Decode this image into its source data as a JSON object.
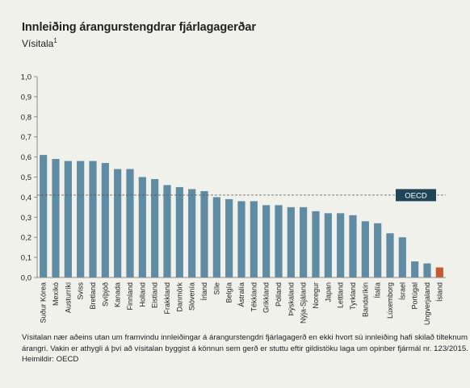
{
  "header": {
    "title": "Innleiðing árangurstengdrar fjárlagagerðar",
    "subtitle": "Vísitala",
    "subtitle_sup": "1"
  },
  "footnote": {
    "line1": "Vísitalan nær aðeins utan um framvindu innleiðingar á árangurstengdri fjárlagagerð en ekki hvort sú innleiðing hafi skilað tilteknum",
    "line2": "árangri. Vakin er athygli á því að vísitalan byggist á könnun sem gerð er stuttu eftir gildistöku laga um opinber fjármál nr. 123/2015.",
    "line3": "Heimildir: OECD"
  },
  "chart_data": {
    "type": "bar",
    "categories": [
      "Suður Kórea",
      "Mexíkó",
      "Austurríki",
      "Sviss",
      "Bretland",
      "Svíþjóð",
      "Kanada",
      "Finnland",
      "Holland",
      "Eistland",
      "Frakkland",
      "Danmörk",
      "Slóvenía",
      "Írland",
      "Síle",
      "Belgía",
      "Ástralía",
      "Tékkland",
      "Grikkland",
      "Pólland",
      "Þýskaland",
      "Nýja-Sjáland",
      "Noregur",
      "Japan",
      "Lettland",
      "Tyrkland",
      "Bandaríkin",
      "Ítalía",
      "Lúxemborg",
      "Ísrael",
      "Portúgal",
      "Ungverjaland",
      "Ísland"
    ],
    "values": [
      0.61,
      0.59,
      0.58,
      0.58,
      0.58,
      0.57,
      0.54,
      0.54,
      0.5,
      0.49,
      0.46,
      0.45,
      0.44,
      0.43,
      0.4,
      0.39,
      0.38,
      0.38,
      0.36,
      0.36,
      0.35,
      0.35,
      0.33,
      0.32,
      0.32,
      0.31,
      0.28,
      0.27,
      0.22,
      0.2,
      0.08,
      0.07,
      0.05
    ],
    "highlight_category": "Ísland",
    "colors": {
      "bar": "#5f8ca2",
      "highlight": "#c65a2e",
      "axis": "#8a8a8a",
      "reference": "#555555"
    },
    "ylim": [
      0,
      1.0
    ],
    "yticks": [
      "0,0",
      "0,1",
      "0,2",
      "0,3",
      "0,4",
      "0,5",
      "0,6",
      "0,7",
      "0,8",
      "0,9",
      "1,0"
    ],
    "reference_line": {
      "label": "OECD",
      "value": 0.41,
      "label_bg": "#1e4558",
      "style": "dashed"
    },
    "grid": false,
    "title": "",
    "xlabel": "",
    "ylabel": ""
  }
}
